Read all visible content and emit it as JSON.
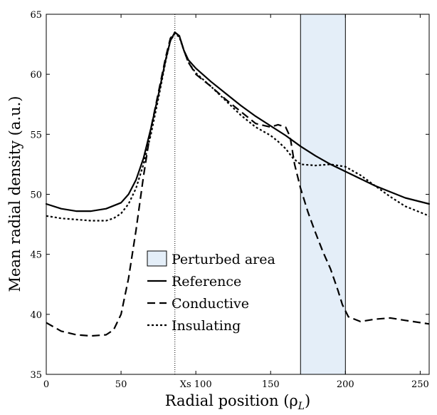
{
  "chart_data": {
    "type": "line",
    "xlabel": "Radial position (ρ",
    "xlabel_sub": "L",
    "xlabel_close": ")",
    "ylabel": "Mean radial density (a.u.)",
    "xlim": [
      0,
      256
    ],
    "ylim": [
      35,
      65
    ],
    "xticks": [
      {
        "value": 0,
        "label": "0"
      },
      {
        "value": 50,
        "label": "50"
      },
      {
        "value": 100,
        "label": "Xs 100"
      },
      {
        "value": 150,
        "label": "150"
      },
      {
        "value": 200,
        "label": "200"
      },
      {
        "value": 250,
        "label": "250"
      }
    ],
    "yticks": [
      35,
      40,
      45,
      50,
      55,
      60,
      65
    ],
    "grid": false,
    "legend_position": "center-left",
    "separatrix_x": 86,
    "perturbed_area": {
      "name": "Perturbed area",
      "x0": 170,
      "x1": 200,
      "color": "#e4eef8"
    },
    "series": [
      {
        "name": "Reference",
        "style": "solid",
        "points": [
          [
            0,
            49.2
          ],
          [
            10,
            48.8
          ],
          [
            20,
            48.6
          ],
          [
            30,
            48.6
          ],
          [
            40,
            48.8
          ],
          [
            50,
            49.3
          ],
          [
            55,
            50
          ],
          [
            60,
            51.2
          ],
          [
            65,
            53
          ],
          [
            70,
            55.5
          ],
          [
            75,
            58.3
          ],
          [
            80,
            61.3
          ],
          [
            83,
            62.8
          ],
          [
            86,
            63.5
          ],
          [
            89,
            63.2
          ],
          [
            92,
            62
          ],
          [
            95,
            61.2
          ],
          [
            100,
            60.5
          ],
          [
            110,
            59.4
          ],
          [
            120,
            58.4
          ],
          [
            130,
            57.4
          ],
          [
            140,
            56.5
          ],
          [
            150,
            55.7
          ],
          [
            160,
            54.9
          ],
          [
            170,
            54
          ],
          [
            180,
            53.2
          ],
          [
            190,
            52.5
          ],
          [
            200,
            51.9
          ],
          [
            210,
            51.3
          ],
          [
            220,
            50.7
          ],
          [
            230,
            50.2
          ],
          [
            240,
            49.7
          ],
          [
            256,
            49.2
          ]
        ]
      },
      {
        "name": "Conductive",
        "style": "dashed",
        "points": [
          [
            0,
            39.3
          ],
          [
            10,
            38.6
          ],
          [
            20,
            38.3
          ],
          [
            30,
            38.2
          ],
          [
            40,
            38.3
          ],
          [
            45,
            38.7
          ],
          [
            50,
            40
          ],
          [
            55,
            43
          ],
          [
            60,
            47
          ],
          [
            65,
            51.5
          ],
          [
            70,
            55.5
          ],
          [
            75,
            58.5
          ],
          [
            80,
            61.5
          ],
          [
            83,
            63
          ],
          [
            86,
            63.5
          ],
          [
            89,
            63.2
          ],
          [
            92,
            62
          ],
          [
            95,
            61
          ],
          [
            100,
            60
          ],
          [
            110,
            59
          ],
          [
            120,
            57.9
          ],
          [
            130,
            56.9
          ],
          [
            140,
            55.9
          ],
          [
            150,
            55.6
          ],
          [
            155,
            55.8
          ],
          [
            160,
            55.6
          ],
          [
            163,
            54.8
          ],
          [
            166,
            52.5
          ],
          [
            170,
            50.5
          ],
          [
            175,
            48.5
          ],
          [
            180,
            46.8
          ],
          [
            185,
            45.2
          ],
          [
            190,
            43.8
          ],
          [
            195,
            42
          ],
          [
            198,
            40.8
          ],
          [
            202,
            39.8
          ],
          [
            210,
            39.4
          ],
          [
            220,
            39.6
          ],
          [
            230,
            39.7
          ],
          [
            240,
            39.5
          ],
          [
            256,
            39.2
          ]
        ]
      },
      {
        "name": "Insulating",
        "style": "dotted",
        "points": [
          [
            0,
            48.2
          ],
          [
            10,
            48
          ],
          [
            20,
            47.9
          ],
          [
            30,
            47.8
          ],
          [
            40,
            47.8
          ],
          [
            45,
            48
          ],
          [
            50,
            48.4
          ],
          [
            55,
            49.2
          ],
          [
            60,
            50.5
          ],
          [
            65,
            52.5
          ],
          [
            70,
            55
          ],
          [
            75,
            58
          ],
          [
            80,
            61.2
          ],
          [
            83,
            62.8
          ],
          [
            86,
            63.4
          ],
          [
            89,
            63.1
          ],
          [
            92,
            62
          ],
          [
            95,
            61
          ],
          [
            100,
            60.1
          ],
          [
            110,
            59
          ],
          [
            120,
            57.8
          ],
          [
            130,
            56.6
          ],
          [
            140,
            55.6
          ],
          [
            150,
            54.9
          ],
          [
            155,
            54.4
          ],
          [
            160,
            53.8
          ],
          [
            165,
            53
          ],
          [
            170,
            52.5
          ],
          [
            180,
            52.4
          ],
          [
            190,
            52.5
          ],
          [
            200,
            52.3
          ],
          [
            210,
            51.6
          ],
          [
            220,
            50.7
          ],
          [
            230,
            49.8
          ],
          [
            240,
            49
          ],
          [
            256,
            48.2
          ]
        ]
      }
    ]
  }
}
